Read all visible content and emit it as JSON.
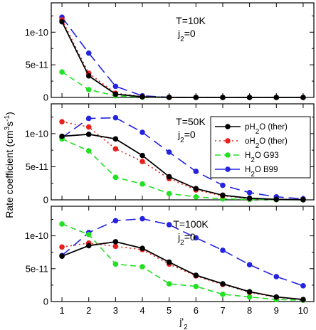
{
  "chart_data": {
    "type": "line",
    "ylabel_parts": {
      "base": "Rate coefficient (cm",
      "exp1": "3",
      "mid": "s",
      "exp2": "-1",
      "end": ")"
    },
    "xlabel_parts": {
      "base": "j'",
      "sub": "2"
    },
    "x": [
      1,
      2,
      3,
      4,
      5,
      6,
      7,
      8,
      9,
      10
    ],
    "xticks": [
      "1",
      "2",
      "3",
      "4",
      "5",
      "6",
      "7",
      "8",
      "9",
      "10"
    ],
    "yticks": [
      {
        "value": 0,
        "label": "0"
      },
      {
        "value": 5e-11,
        "label": "5e-11"
      },
      {
        "value": 1e-10,
        "label": "1e-10"
      }
    ],
    "legend": [
      {
        "key": "pH2O",
        "text": "pH",
        "sub": "2",
        "rest": "O (ther)"
      },
      {
        "key": "oH2O",
        "text": "oH",
        "sub": "2",
        "rest": "O (ther)"
      },
      {
        "key": "G93",
        "text": "H",
        "sub": "2",
        "rest": "O G93"
      },
      {
        "key": "B99",
        "text": "H",
        "sub": "2",
        "rest": "O B99"
      }
    ],
    "series_style": {
      "pH2O": {
        "color": "#000000",
        "dash": "none"
      },
      "oH2O": {
        "color": "#e8201c",
        "dash": "2 4"
      },
      "G93": {
        "color": "#22e022",
        "dash": "8 5"
      },
      "B99": {
        "color": "#2323e0",
        "dash": "14 7"
      }
    },
    "panels": [
      {
        "T_label": "T=10K",
        "j_label": {
          "base": "j",
          "sub": "2",
          "rest": "=0"
        },
        "ylim": [
          0,
          1.45e-10
        ],
        "series": {
          "B99": [
            1.23e-10,
            6.8e-11,
            1.7e-11,
            2.5e-12,
            2e-13,
            0,
            0,
            0,
            0,
            0
          ],
          "G93": [
            3.9e-11,
            1.2e-11,
            2.5e-12,
            5e-13,
            0,
            0,
            0,
            0,
            0,
            0
          ],
          "oH2O": [
            1.19e-10,
            3.7e-11,
            6.5e-12,
            1.2e-12,
            1e-13,
            0,
            0,
            0,
            0,
            0
          ],
          "pH2O": [
            1.16e-10,
            3.3e-11,
            5e-12,
            1e-12,
            1e-13,
            0,
            0,
            0,
            0,
            0
          ]
        }
      },
      {
        "T_label": "T=50K",
        "j_label": {
          "base": "j",
          "sub": "2",
          "rest": "=0"
        },
        "ylim": [
          0,
          1.45e-10
        ],
        "series": {
          "B99": [
            9.4e-11,
            1.23e-10,
            1.24e-10,
            1.02e-10,
            7.2e-11,
            4.3e-11,
            2.2e-11,
            1.1e-11,
            4.5e-12,
            1.5e-12
          ],
          "G93": [
            9.2e-11,
            7.4e-11,
            3.4e-11,
            2.4e-11,
            9.5e-12,
            4.5e-12,
            1.5e-12,
            5e-13,
            2e-13,
            1e-13
          ],
          "oH2O": [
            1.18e-10,
            1.1e-10,
            7.7e-11,
            5.8e-11,
            3.2e-11,
            1.5e-11,
            6e-12,
            2e-12,
            7e-13,
            2e-13
          ],
          "pH2O": [
            9.6e-11,
            9.9e-11,
            9.2e-11,
            6.7e-11,
            3.5e-11,
            1.7e-11,
            7e-12,
            2.5e-12,
            8e-13,
            2e-13
          ]
        }
      },
      {
        "T_label": "T=100K",
        "j_label": {
          "base": "j",
          "sub": "2",
          "rest": "=0"
        },
        "ylim": [
          0,
          1.45e-10
        ],
        "series": {
          "B99": [
            7e-11,
            1.05e-10,
            1.23e-10,
            1.26e-10,
            1.17e-10,
            9.7e-11,
            7.8e-11,
            5.6e-11,
            3.8e-11,
            2.4e-11
          ],
          "G93": [
            1.18e-10,
            1.02e-10,
            5.7e-11,
            5.3e-11,
            2.7e-11,
            2.3e-11,
            1.1e-11,
            7e-12,
            3e-12,
            2e-12
          ],
          "oH2O": [
            8.3e-11,
            8.9e-11,
            8.4e-11,
            7.9e-11,
            5.7e-11,
            3.9e-11,
            2.6e-11,
            1.4e-11,
            6.5e-12,
            3e-12
          ],
          "pH2O": [
            6.9e-11,
            8.5e-11,
            9.1e-11,
            8.1e-11,
            6e-11,
            4e-11,
            2.7e-11,
            1.5e-11,
            7e-12,
            3e-12
          ]
        }
      }
    ]
  }
}
